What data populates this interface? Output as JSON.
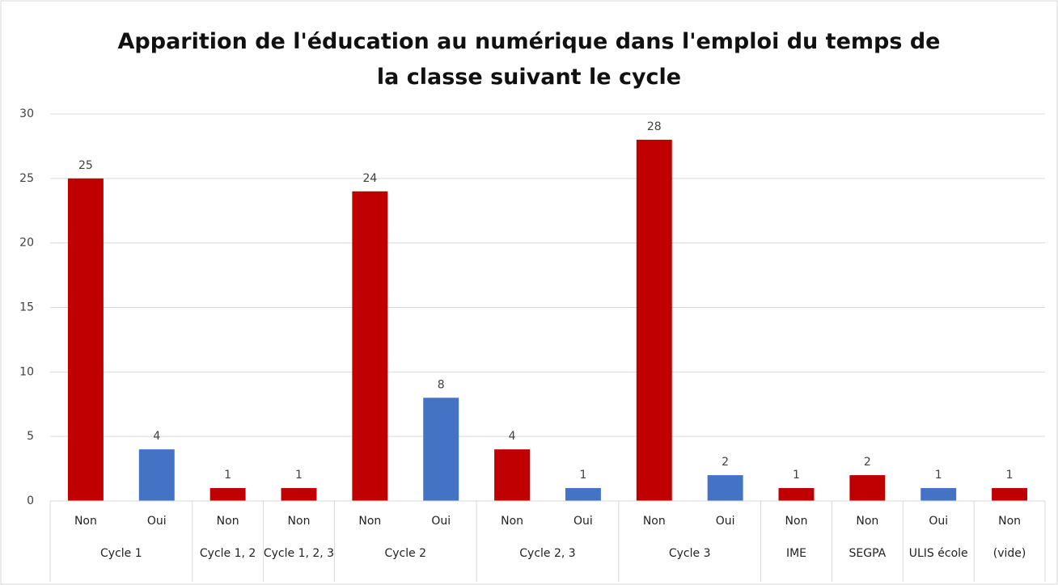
{
  "chart_data": {
    "type": "bar",
    "title": "Apparition de l'éducation au numérique dans l'emploi du temps de la classe suivant le cycle",
    "categories": [
      "Non",
      "Oui",
      "Non",
      "Non",
      "Non",
      "Oui",
      "Non",
      "Oui",
      "Non",
      "Oui",
      "Non",
      "Non",
      "Oui",
      "Non"
    ],
    "groups": [
      {
        "label": "Cycle 1",
        "span": 2
      },
      {
        "label": "Cycle 1, 2",
        "span": 1
      },
      {
        "label": "Cycle 1, 2, 3",
        "span": 1
      },
      {
        "label": "Cycle 2",
        "span": 2
      },
      {
        "label": "Cycle 2, 3",
        "span": 2
      },
      {
        "label": "Cycle 3",
        "span": 2
      },
      {
        "label": "IME",
        "span": 1
      },
      {
        "label": "SEGPA",
        "span": 1
      },
      {
        "label": "ULIS école",
        "span": 1
      },
      {
        "label": "(vide)",
        "span": 1
      }
    ],
    "values": [
      25,
      4,
      1,
      1,
      24,
      8,
      4,
      1,
      28,
      2,
      1,
      2,
      1,
      1
    ],
    "colors": [
      "#c00000",
      "#4472c4",
      "#c00000",
      "#c00000",
      "#c00000",
      "#4472c4",
      "#c00000",
      "#4472c4",
      "#c00000",
      "#4472c4",
      "#c00000",
      "#c00000",
      "#4472c4",
      "#c00000"
    ],
    "ylim": [
      0,
      30
    ],
    "yticks": [
      0,
      5,
      10,
      15,
      20,
      25,
      30
    ],
    "grid": true
  }
}
